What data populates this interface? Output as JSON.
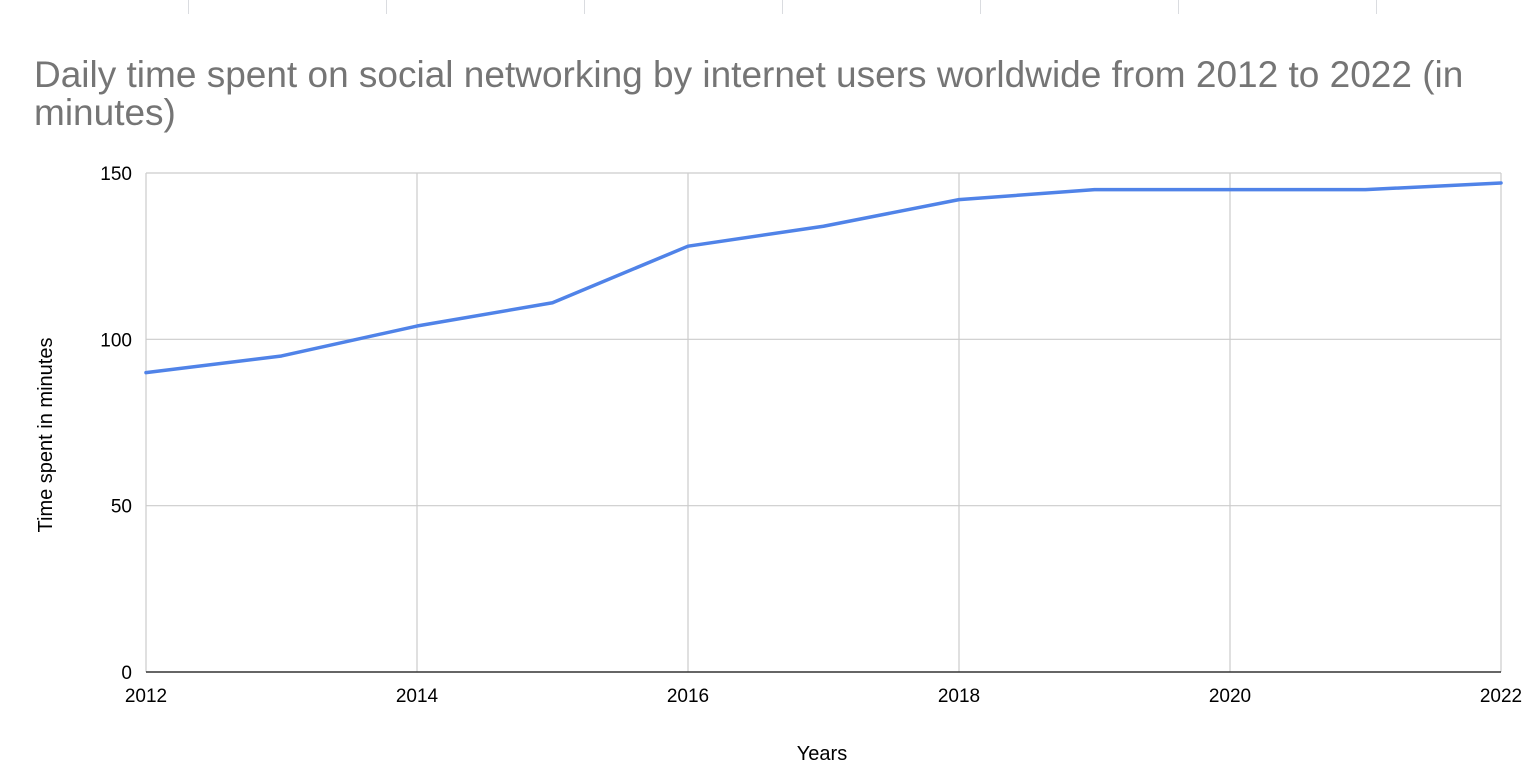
{
  "chart_data": {
    "type": "line",
    "title": "Daily time spent on social networking by internet users worldwide from 2012 to 2022 (in minutes)",
    "xlabel": "Years",
    "ylabel": "Time spent in minutes",
    "x": [
      2012,
      2013,
      2014,
      2015,
      2016,
      2017,
      2018,
      2019,
      2020,
      2021,
      2022
    ],
    "series": [
      {
        "values": [
          90,
          95,
          104,
          111,
          128,
          134,
          142,
          145,
          145,
          145,
          147
        ],
        "color": "#5083e8"
      }
    ],
    "xlim": [
      2012,
      2022
    ],
    "ylim": [
      0,
      150
    ],
    "xticks": [
      "2012",
      "2014",
      "2016",
      "2018",
      "2020",
      "2022"
    ],
    "yticks": [
      "0",
      "50",
      "100",
      "150"
    ],
    "grid": true,
    "legend": "none"
  }
}
